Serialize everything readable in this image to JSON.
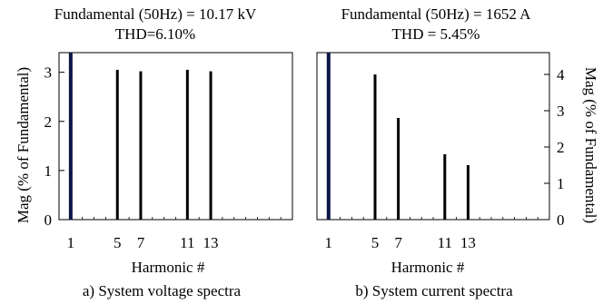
{
  "chart_data": [
    {
      "type": "bar",
      "title_line1": "Fundamental (50Hz) = 10.17 kV",
      "title_line2": "THD=6.10%",
      "xlabel": "Harmonic #",
      "ylabel": "Mag (% of Fundamental)",
      "caption": "a) System voltage spectra",
      "x_ticks": [
        "1",
        "5",
        "7",
        "11",
        "13"
      ],
      "y_ticks": [
        "0",
        "1",
        "2",
        "3"
      ],
      "xlim": [
        0,
        20
      ],
      "ylim": [
        0,
        3.4
      ],
      "harmonics": [
        1,
        5,
        7,
        11,
        13
      ],
      "values": [
        3.4,
        3.05,
        3.02,
        3.05,
        3.02
      ],
      "clipped": [
        true,
        false,
        false,
        false,
        false
      ],
      "grid": false
    },
    {
      "type": "bar",
      "title_line1": "Fundamental (50Hz) = 1652 A",
      "title_line2": "THD = 5.45%",
      "xlabel": "Harmonic #",
      "ylabel": "Mag (% of Fundamental)",
      "caption": "b) System current spectra",
      "x_ticks": [
        "1",
        "5",
        "7",
        "11",
        "13"
      ],
      "y_ticks": [
        "0",
        "1",
        "2",
        "3",
        "4"
      ],
      "xlim": [
        0,
        20
      ],
      "ylim": [
        0,
        4.6
      ],
      "harmonics": [
        1,
        5,
        7,
        11,
        13
      ],
      "values": [
        4.6,
        4.0,
        2.8,
        1.8,
        1.5
      ],
      "clipped": [
        true,
        false,
        false,
        false,
        false
      ],
      "grid": false
    }
  ]
}
